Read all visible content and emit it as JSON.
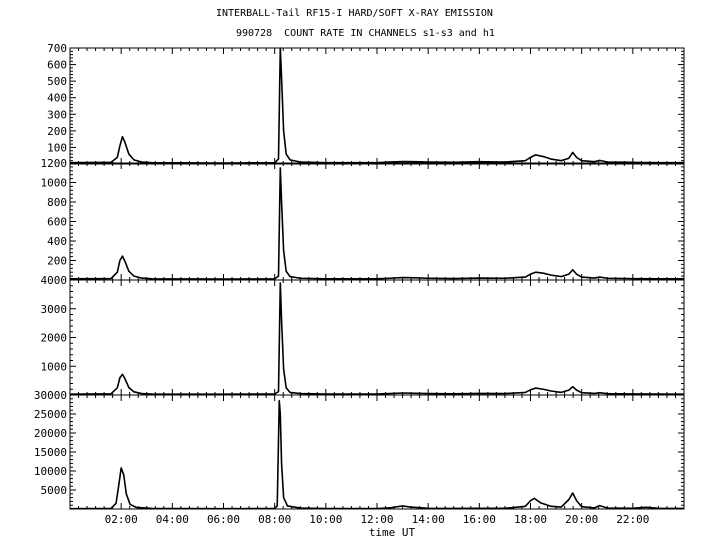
{
  "chart_data": {
    "type": "line",
    "title": "INTERBALL-Tail RF15-I HARD/SOFT X-RAY EMISSION",
    "subtitle": "990728  COUNT RATE IN CHANNELS s1-s3 and h1",
    "xlabel": "time UT",
    "xlim_hours": [
      0,
      24
    ],
    "x_tick_labels": [
      "02:00",
      "04:00",
      "06:00",
      "08:00",
      "10:00",
      "12:00",
      "14:00",
      "16:00",
      "18:00",
      "20:00",
      "22:00"
    ],
    "x_tick_hours": [
      2,
      4,
      6,
      8,
      10,
      12,
      14,
      16,
      18,
      20,
      22
    ],
    "grid": false,
    "panels": [
      {
        "ylim": [
          0,
          700
        ],
        "y_ticks": [
          100,
          200,
          300,
          400,
          500,
          600,
          700
        ],
        "y_tick_labels": [
          "100",
          "200",
          "300",
          "400",
          "500",
          "600",
          "700"
        ],
        "points": [
          [
            0,
            8
          ],
          [
            1.6,
            10
          ],
          [
            1.85,
            40
          ],
          [
            1.95,
            110
          ],
          [
            2.05,
            165
          ],
          [
            2.15,
            130
          ],
          [
            2.3,
            60
          ],
          [
            2.5,
            25
          ],
          [
            2.8,
            12
          ],
          [
            3.2,
            8
          ],
          [
            6,
            6
          ],
          [
            8,
            8
          ],
          [
            8.15,
            30
          ],
          [
            8.22,
            700
          ],
          [
            8.27,
            520
          ],
          [
            8.35,
            200
          ],
          [
            8.45,
            60
          ],
          [
            8.6,
            25
          ],
          [
            9,
            12
          ],
          [
            10,
            8
          ],
          [
            12,
            8
          ],
          [
            12.5,
            12
          ],
          [
            13,
            15
          ],
          [
            13.5,
            14
          ],
          [
            14,
            12
          ],
          [
            15,
            10
          ],
          [
            16,
            14
          ],
          [
            17,
            12
          ],
          [
            17.8,
            20
          ],
          [
            18,
            40
          ],
          [
            18.2,
            55
          ],
          [
            18.5,
            45
          ],
          [
            18.8,
            30
          ],
          [
            19.2,
            20
          ],
          [
            19.5,
            35
          ],
          [
            19.65,
            70
          ],
          [
            19.8,
            40
          ],
          [
            20,
            20
          ],
          [
            20.5,
            14
          ],
          [
            20.7,
            22
          ],
          [
            21,
            12
          ],
          [
            22,
            10
          ],
          [
            23,
            8
          ],
          [
            24,
            8
          ]
        ]
      },
      {
        "ylim": [
          0,
          1200
        ],
        "y_ticks": [
          200,
          400,
          600,
          800,
          1000,
          1200
        ],
        "y_tick_labels": [
          "200",
          "400",
          "600",
          "800",
          "1000",
          "1200"
        ],
        "points": [
          [
            0,
            12
          ],
          [
            1.6,
            15
          ],
          [
            1.85,
            80
          ],
          [
            1.95,
            200
          ],
          [
            2.05,
            245
          ],
          [
            2.15,
            190
          ],
          [
            2.3,
            90
          ],
          [
            2.5,
            40
          ],
          [
            2.8,
            20
          ],
          [
            3.2,
            12
          ],
          [
            6,
            10
          ],
          [
            8,
            12
          ],
          [
            8.15,
            40
          ],
          [
            8.22,
            1150
          ],
          [
            8.27,
            800
          ],
          [
            8.35,
            300
          ],
          [
            8.45,
            90
          ],
          [
            8.6,
            35
          ],
          [
            9,
            18
          ],
          [
            10,
            12
          ],
          [
            12,
            12
          ],
          [
            12.5,
            18
          ],
          [
            13,
            25
          ],
          [
            13.5,
            22
          ],
          [
            14,
            18
          ],
          [
            15,
            15
          ],
          [
            16,
            20
          ],
          [
            17,
            18
          ],
          [
            17.8,
            30
          ],
          [
            18,
            60
          ],
          [
            18.2,
            80
          ],
          [
            18.5,
            70
          ],
          [
            18.8,
            50
          ],
          [
            19.2,
            35
          ],
          [
            19.5,
            60
          ],
          [
            19.65,
            105
          ],
          [
            19.8,
            60
          ],
          [
            20,
            30
          ],
          [
            20.5,
            20
          ],
          [
            20.7,
            30
          ],
          [
            21,
            18
          ],
          [
            22,
            14
          ],
          [
            23,
            12
          ],
          [
            24,
            12
          ]
        ]
      },
      {
        "ylim": [
          0,
          4000
        ],
        "y_ticks": [
          1000,
          2000,
          3000,
          4000
        ],
        "y_tick_labels": [
          "1000",
          "2000",
          "3000",
          "4000"
        ],
        "points": [
          [
            0,
            30
          ],
          [
            1.6,
            40
          ],
          [
            1.85,
            250
          ],
          [
            1.95,
            600
          ],
          [
            2.05,
            720
          ],
          [
            2.15,
            560
          ],
          [
            2.3,
            260
          ],
          [
            2.5,
            110
          ],
          [
            2.8,
            50
          ],
          [
            3.2,
            35
          ],
          [
            6,
            30
          ],
          [
            8,
            35
          ],
          [
            8.15,
            120
          ],
          [
            8.22,
            3900
          ],
          [
            8.27,
            2600
          ],
          [
            8.35,
            900
          ],
          [
            8.45,
            250
          ],
          [
            8.6,
            90
          ],
          [
            9,
            50
          ],
          [
            10,
            35
          ],
          [
            12,
            35
          ],
          [
            12.5,
            50
          ],
          [
            13,
            70
          ],
          [
            13.5,
            60
          ],
          [
            14,
            50
          ],
          [
            15,
            40
          ],
          [
            16,
            55
          ],
          [
            17,
            50
          ],
          [
            17.8,
            90
          ],
          [
            18,
            180
          ],
          [
            18.2,
            240
          ],
          [
            18.5,
            200
          ],
          [
            18.8,
            140
          ],
          [
            19.2,
            90
          ],
          [
            19.5,
            170
          ],
          [
            19.65,
            290
          ],
          [
            19.8,
            170
          ],
          [
            20,
            80
          ],
          [
            20.5,
            55
          ],
          [
            20.7,
            80
          ],
          [
            21,
            45
          ],
          [
            22,
            38
          ],
          [
            23,
            32
          ],
          [
            24,
            30
          ]
        ]
      },
      {
        "ylim": [
          0,
          30000
        ],
        "y_ticks": [
          5000,
          10000,
          15000,
          20000,
          25000,
          30000
        ],
        "y_tick_labels": [
          "5000",
          "10000",
          "15000",
          "20000",
          "25000",
          "30000"
        ],
        "points": [
          [
            0,
            100
          ],
          [
            1.6,
            150
          ],
          [
            1.8,
            1500
          ],
          [
            1.9,
            6000
          ],
          [
            2.0,
            10800
          ],
          [
            2.1,
            9000
          ],
          [
            2.2,
            4000
          ],
          [
            2.35,
            1200
          ],
          [
            2.6,
            400
          ],
          [
            3.2,
            150
          ],
          [
            6,
            100
          ],
          [
            8,
            120
          ],
          [
            8.1,
            800
          ],
          [
            8.18,
            28500
          ],
          [
            8.22,
            25000
          ],
          [
            8.27,
            12000
          ],
          [
            8.35,
            3000
          ],
          [
            8.5,
            800
          ],
          [
            9,
            250
          ],
          [
            10,
            120
          ],
          [
            12,
            120
          ],
          [
            12.5,
            300
          ],
          [
            13,
            800
          ],
          [
            13.3,
            500
          ],
          [
            14,
            200
          ],
          [
            15,
            150
          ],
          [
            16,
            200
          ],
          [
            17,
            180
          ],
          [
            17.8,
            700
          ],
          [
            18,
            2200
          ],
          [
            18.15,
            2800
          ],
          [
            18.4,
            1600
          ],
          [
            18.8,
            700
          ],
          [
            19.2,
            500
          ],
          [
            19.5,
            2500
          ],
          [
            19.65,
            4200
          ],
          [
            19.8,
            2200
          ],
          [
            20,
            600
          ],
          [
            20.5,
            300
          ],
          [
            20.7,
            900
          ],
          [
            21,
            250
          ],
          [
            22,
            200
          ],
          [
            22.5,
            450
          ],
          [
            23,
            180
          ],
          [
            24,
            150
          ]
        ]
      }
    ]
  }
}
